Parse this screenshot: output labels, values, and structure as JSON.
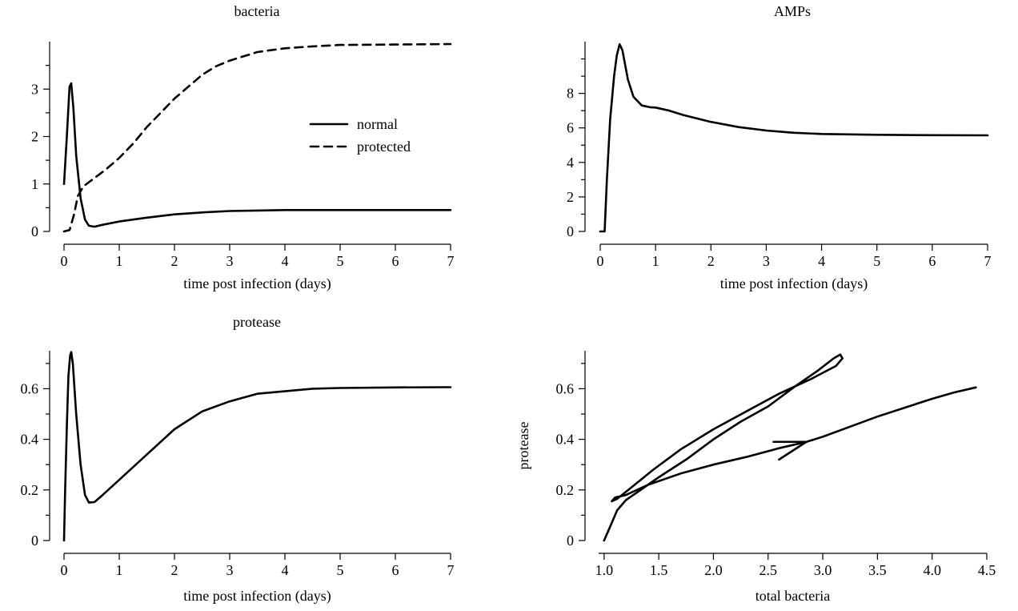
{
  "chart_data": [
    {
      "id": "bacteria",
      "type": "line",
      "title": "bacteria",
      "xlabel": "time post infection (days)",
      "ylabel": "",
      "xlim": [
        0,
        7
      ],
      "ylim": [
        0,
        4
      ],
      "xticks": [
        0,
        1,
        2,
        3,
        4,
        5,
        6,
        7
      ],
      "yticks": [
        0,
        1,
        2,
        3
      ],
      "minor_yticks": [
        0.5,
        1.5,
        2.5,
        3.5
      ],
      "grid": false,
      "legend": {
        "placement": "center-right",
        "entries": [
          "normal",
          "protected"
        ]
      },
      "series": [
        {
          "name": "normal",
          "style": "solid",
          "points": [
            [
              0,
              1.0
            ],
            [
              0.05,
              2.0
            ],
            [
              0.1,
              3.05
            ],
            [
              0.13,
              3.12
            ],
            [
              0.17,
              2.6
            ],
            [
              0.22,
              1.6
            ],
            [
              0.3,
              0.7
            ],
            [
              0.38,
              0.25
            ],
            [
              0.45,
              0.12
            ],
            [
              0.55,
              0.1
            ],
            [
              0.7,
              0.14
            ],
            [
              1.0,
              0.21
            ],
            [
              1.5,
              0.29
            ],
            [
              2.0,
              0.36
            ],
            [
              2.5,
              0.4
            ],
            [
              3.0,
              0.43
            ],
            [
              3.5,
              0.44
            ],
            [
              4.0,
              0.45
            ],
            [
              5.0,
              0.45
            ],
            [
              6.0,
              0.45
            ],
            [
              7.0,
              0.45
            ]
          ]
        },
        {
          "name": "protected",
          "style": "dashed",
          "points": [
            [
              0,
              0
            ],
            [
              0.1,
              0.03
            ],
            [
              0.18,
              0.35
            ],
            [
              0.25,
              0.75
            ],
            [
              0.35,
              0.95
            ],
            [
              0.5,
              1.08
            ],
            [
              0.75,
              1.3
            ],
            [
              1.0,
              1.55
            ],
            [
              1.25,
              1.85
            ],
            [
              1.5,
              2.2
            ],
            [
              1.75,
              2.5
            ],
            [
              2.0,
              2.8
            ],
            [
              2.25,
              3.05
            ],
            [
              2.5,
              3.3
            ],
            [
              2.75,
              3.48
            ],
            [
              3.0,
              3.6
            ],
            [
              3.5,
              3.78
            ],
            [
              4.0,
              3.86
            ],
            [
              4.5,
              3.9
            ],
            [
              5.0,
              3.93
            ],
            [
              6.0,
              3.94
            ],
            [
              7.0,
              3.95
            ]
          ]
        }
      ]
    },
    {
      "id": "amps",
      "type": "line",
      "title": "AMPs",
      "xlabel": "time post infection (days)",
      "ylabel": "",
      "xlim": [
        0,
        7
      ],
      "ylim": [
        0,
        11
      ],
      "xticks": [
        0,
        1,
        2,
        3,
        4,
        5,
        6,
        7
      ],
      "yticks": [
        0,
        2,
        4,
        6,
        8
      ],
      "minor_yticks": [
        1,
        3,
        5,
        7,
        9,
        10
      ],
      "grid": false,
      "series": [
        {
          "name": "",
          "style": "solid",
          "points": [
            [
              0,
              0
            ],
            [
              0.08,
              0
            ],
            [
              0.12,
              3.0
            ],
            [
              0.18,
              6.5
            ],
            [
              0.25,
              9.0
            ],
            [
              0.3,
              10.2
            ],
            [
              0.35,
              10.85
            ],
            [
              0.4,
              10.5
            ],
            [
              0.5,
              8.8
            ],
            [
              0.6,
              7.8
            ],
            [
              0.75,
              7.3
            ],
            [
              0.9,
              7.2
            ],
            [
              1.0,
              7.18
            ],
            [
              1.25,
              7.0
            ],
            [
              1.5,
              6.75
            ],
            [
              2.0,
              6.35
            ],
            [
              2.5,
              6.05
            ],
            [
              3.0,
              5.85
            ],
            [
              3.5,
              5.72
            ],
            [
              4.0,
              5.65
            ],
            [
              5.0,
              5.6
            ],
            [
              6.0,
              5.58
            ],
            [
              7.0,
              5.57
            ]
          ]
        }
      ]
    },
    {
      "id": "protease",
      "type": "line",
      "title": "protease",
      "xlabel": "time post infection (days)",
      "ylabel": "",
      "xlim": [
        0,
        7
      ],
      "ylim": [
        0,
        0.75
      ],
      "xticks": [
        0,
        1,
        2,
        3,
        4,
        5,
        6,
        7
      ],
      "yticks": [
        0,
        0.2,
        0.4,
        0.6
      ],
      "ytick_labels": [
        "0",
        "0.2",
        "0.4",
        "0.6"
      ],
      "minor_yticks": [
        0.1,
        0.3,
        0.5,
        0.7
      ],
      "grid": false,
      "series": [
        {
          "name": "",
          "style": "solid",
          "points": [
            [
              0,
              0
            ],
            [
              0.02,
              0.2
            ],
            [
              0.05,
              0.45
            ],
            [
              0.08,
              0.65
            ],
            [
              0.11,
              0.73
            ],
            [
              0.13,
              0.745
            ],
            [
              0.16,
              0.7
            ],
            [
              0.22,
              0.5
            ],
            [
              0.3,
              0.3
            ],
            [
              0.38,
              0.18
            ],
            [
              0.45,
              0.15
            ],
            [
              0.55,
              0.152
            ],
            [
              0.7,
              0.18
            ],
            [
              1.0,
              0.24
            ],
            [
              1.5,
              0.34
            ],
            [
              2.0,
              0.44
            ],
            [
              2.5,
              0.51
            ],
            [
              3.0,
              0.55
            ],
            [
              3.5,
              0.58
            ],
            [
              4.0,
              0.59
            ],
            [
              4.5,
              0.6
            ],
            [
              5.0,
              0.603
            ],
            [
              6.0,
              0.605
            ],
            [
              7.0,
              0.606
            ]
          ]
        }
      ]
    },
    {
      "id": "phase",
      "type": "line",
      "title": "",
      "xlabel": "total bacteria",
      "ylabel": "protease",
      "xlim": [
        0.95,
        4.5
      ],
      "ylim": [
        0,
        0.75
      ],
      "xticks": [
        1.0,
        1.5,
        2.0,
        2.5,
        3.0,
        3.5,
        4.0,
        4.5
      ],
      "xtick_labels": [
        "1.0",
        "1.5",
        "2.0",
        "2.5",
        "3.0",
        "3.5",
        "4.0",
        "4.5"
      ],
      "yticks": [
        0,
        0.2,
        0.4,
        0.6
      ],
      "ytick_labels": [
        "0",
        "0.2",
        "0.4",
        "0.6"
      ],
      "minor_yticks": [
        0.1,
        0.3,
        0.5,
        0.7
      ],
      "grid": false,
      "series": [
        {
          "name": "",
          "style": "solid",
          "points": [
            [
              1.0,
              0
            ],
            [
              1.05,
              0.05
            ],
            [
              1.12,
              0.12
            ],
            [
              1.2,
              0.16
            ],
            [
              1.3,
              0.19
            ],
            [
              1.5,
              0.25
            ],
            [
              1.75,
              0.32
            ],
            [
              2.0,
              0.4
            ],
            [
              2.25,
              0.47
            ],
            [
              2.5,
              0.53
            ],
            [
              2.75,
              0.61
            ],
            [
              2.95,
              0.67
            ],
            [
              3.1,
              0.72
            ],
            [
              3.16,
              0.735
            ],
            [
              3.18,
              0.72
            ],
            [
              3.12,
              0.69
            ],
            [
              2.9,
              0.64
            ],
            [
              2.6,
              0.58
            ],
            [
              2.3,
              0.51
            ],
            [
              2.0,
              0.44
            ],
            [
              1.7,
              0.36
            ],
            [
              1.45,
              0.28
            ],
            [
              1.25,
              0.21
            ],
            [
              1.12,
              0.165
            ],
            [
              1.07,
              0.155
            ],
            [
              1.1,
              0.17
            ],
            [
              1.2,
              0.18
            ],
            [
              1.4,
              0.22
            ],
            [
              1.7,
              0.265
            ],
            [
              2.0,
              0.3
            ],
            [
              2.3,
              0.33
            ],
            [
              2.6,
              0.365
            ],
            [
              2.85,
              0.39
            ],
            [
              3.0,
              0.41
            ],
            [
              3.25,
              0.45
            ],
            [
              3.5,
              0.49
            ],
            [
              3.75,
              0.525
            ],
            [
              4.0,
              0.56
            ],
            [
              4.2,
              0.585
            ],
            [
              4.4,
              0.605
            ]
          ]
        }
      ],
      "arrow": {
        "tip": [
          2.85,
          0.39
        ],
        "stroke": [
          2.55,
          0.39
        ],
        "barb": [
          2.6,
          0.32
        ]
      }
    }
  ]
}
